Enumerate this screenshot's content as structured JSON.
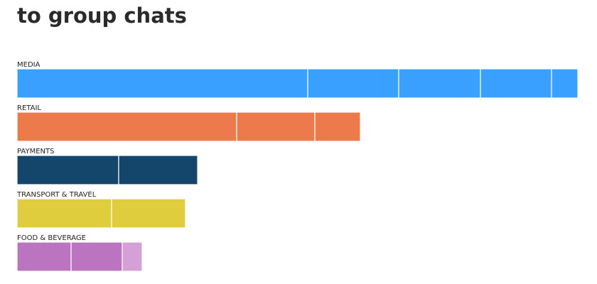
{
  "chart_data": {
    "type": "stacked-bar-horizontal",
    "title": "to group chats",
    "xlim": [
      0,
      789
    ],
    "bars": [
      {
        "category": "MEDIA",
        "colors": [
          "#3aa0ff",
          "#3aa0ff",
          "#3aa0ff",
          "#3aa0ff",
          "#3aa0ff"
        ],
        "values": [
          409,
          128,
          115,
          100,
          37
        ]
      },
      {
        "category": "RETAIL",
        "colors": [
          "#ec7a4b",
          "#ec7a4b",
          "#ec7a4b"
        ],
        "values": [
          309,
          110,
          64
        ]
      },
      {
        "category": "PAYMENTS",
        "colors": [
          "#14456b",
          "#14456b"
        ],
        "values": [
          143,
          111
        ]
      },
      {
        "category": "TRANSPORT & TRAVEL",
        "colors": [
          "#dfcd3e",
          "#dfcd3e"
        ],
        "values": [
          133,
          104
        ]
      },
      {
        "category": "FOOD & BEVERAGE",
        "colors": [
          "#bb75c0",
          "#bb75c0",
          "#d4a0d6"
        ],
        "values": [
          76,
          72,
          28
        ]
      }
    ]
  }
}
